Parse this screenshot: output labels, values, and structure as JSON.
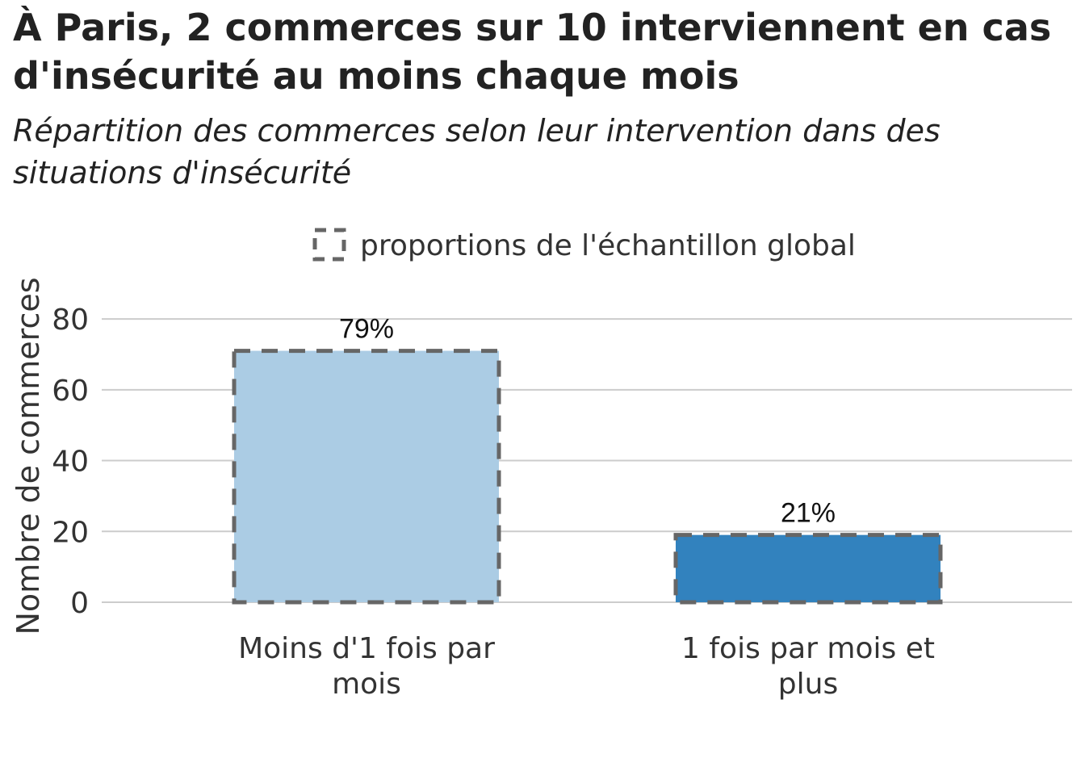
{
  "chart_data": {
    "type": "bar",
    "title": "À Paris, 2 commerces sur 10 interviennent en cas d'insécurité au moins chaque mois",
    "subtitle": "Répartition des commerces selon leur intervention dans des situations d'insécurité",
    "ylabel": "Nombre de commerces",
    "xlabel": "",
    "ylim": [
      0,
      88
    ],
    "yticks": [
      0,
      20,
      40,
      60,
      80
    ],
    "grid": true,
    "legend": {
      "label": "proportions de l'échantillon global",
      "placement": "top"
    },
    "categories": [
      [
        "Moins d'1 fois par",
        "mois"
      ],
      [
        "1 fois par mois et",
        "plus"
      ]
    ],
    "values": [
      71,
      19
    ],
    "reference_values": [
      71,
      19
    ],
    "data_labels": [
      "79%",
      "21%"
    ],
    "colors": [
      "#abcce4",
      "#3282be"
    ],
    "reference_style": {
      "stroke": "#666666",
      "dash": "dashed"
    },
    "grid_color": "#cccccc"
  }
}
